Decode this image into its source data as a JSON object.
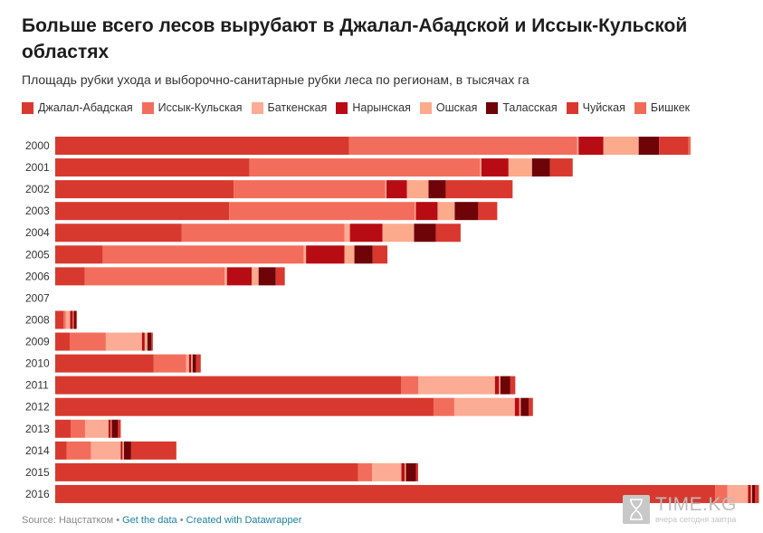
{
  "header": {
    "title": "Больше всего лесов вырубают в Джалал-Абадской и Иссык-Кульской областях",
    "subtitle": "Площадь рубки ухода и выборочно-санитарные рубки леса по регионам, в тысячах га"
  },
  "footer": {
    "source": "Source: Нацстатком",
    "sep1": " • ",
    "get_data": "Get the data",
    "sep2": " • ",
    "created_with": "Created with Datawrapper"
  },
  "watermark": {
    "brand": "TIME.KG",
    "slogan": "вчера сегодня завтра"
  },
  "chart_data": {
    "type": "bar",
    "orientation": "horizontal",
    "stacked": true,
    "title": "Больше всего лесов вырубают в Джалал-Абадской и Иссык-Кульской областях",
    "subtitle": "Площадь рубки ухода и выборочно-санитарные рубки леса по регионам, в тысячах га",
    "legend_position": "top",
    "grid": false,
    "xlim": [
      0,
      15.5
    ],
    "categories": [
      "2000",
      "2001",
      "2002",
      "2003",
      "2004",
      "2005",
      "2006",
      "2007",
      "2008",
      "2009",
      "2010",
      "2011",
      "2012",
      "2013",
      "2014",
      "2015",
      "2016"
    ],
    "series": [
      {
        "name": "Джалал-Абадская",
        "color": "#d7392f",
        "values": [
          6.5,
          4.3,
          3.95,
          3.85,
          2.8,
          1.05,
          0.65,
          0,
          0.18,
          0.32,
          2.18,
          7.65,
          8.37,
          0.34,
          0.25,
          6.7,
          14.6
        ]
      },
      {
        "name": "Иссык-Кульская",
        "color": "#f36d5c",
        "values": [
          5.05,
          5.1,
          3.35,
          4.1,
          3.6,
          4.45,
          3.1,
          0,
          0.05,
          0.8,
          0.72,
          0.38,
          0.46,
          0.32,
          0.54,
          0.31,
          0.27
        ]
      },
      {
        "name": "Баткенская",
        "color": "#fcab94",
        "values": [
          0.03,
          0.03,
          0.03,
          0.03,
          0.12,
          0.05,
          0.05,
          0,
          0.1,
          0.8,
          0.06,
          1.7,
          1.34,
          0.52,
          0.66,
          0.65,
          0.46
        ]
      },
      {
        "name": "Нарынская",
        "color": "#b80c14",
        "values": [
          0.55,
          0.6,
          0.45,
          0.48,
          0.72,
          0.85,
          0.55,
          0,
          0.06,
          0.06,
          0.05,
          0.09,
          0.1,
          0.05,
          0.04,
          0.07,
          0.06
        ]
      },
      {
        "name": "Ошская",
        "color": "#fcaa8c",
        "values": [
          0.78,
          0.52,
          0.48,
          0.38,
          0.7,
          0.22,
          0.15,
          0,
          0.02,
          0.06,
          0.03,
          0.03,
          0.03,
          0.02,
          0.03,
          0.03,
          0.03
        ]
      },
      {
        "name": "Таласская",
        "color": "#6e0308",
        "values": [
          0.45,
          0.4,
          0.38,
          0.52,
          0.48,
          0.4,
          0.38,
          0,
          0.05,
          0.09,
          0.08,
          0.22,
          0.18,
          0.14,
          0.16,
          0.22,
          0.06
        ]
      },
      {
        "name": "Чуйская",
        "color": "#d9382e",
        "values": [
          0.65,
          0.5,
          1.48,
          0.42,
          0.55,
          0.33,
          0.2,
          0,
          0.02,
          0.03,
          0.1,
          0.11,
          0.09,
          0.06,
          1.0,
          0.05,
          0.09
        ]
      },
      {
        "name": "Бишкек",
        "color": "#f16a56",
        "values": [
          0.05,
          0,
          0,
          0,
          0,
          0,
          0,
          0,
          0,
          0,
          0,
          0,
          0,
          0,
          0,
          0,
          0
        ]
      }
    ]
  }
}
